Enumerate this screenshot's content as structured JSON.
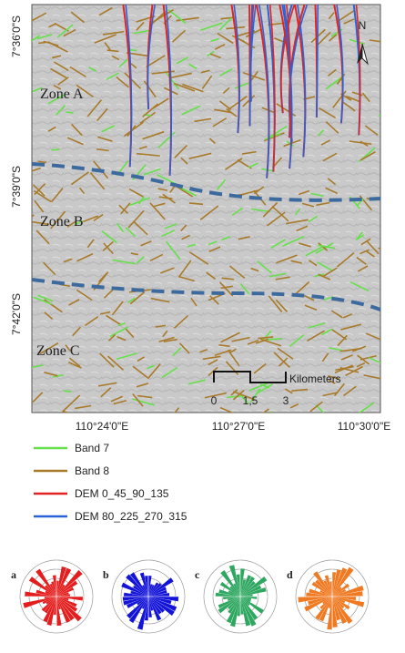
{
  "map": {
    "lat_labels": [
      "7°36'0\"S",
      "7°39'0\"S",
      "7°42'0\"S"
    ],
    "lon_labels": [
      "110°24'0\"E",
      "110°27'0\"E",
      "110°30'0\"E"
    ],
    "zones": [
      "Zone A",
      "Zone B",
      "Zone C"
    ],
    "north": "N",
    "scale": {
      "ticks": [
        "0",
        "1,5",
        "3"
      ],
      "unit": "Kilometers"
    },
    "boundary_color": "#3d6a9e"
  },
  "legend": [
    {
      "label": "Band 7",
      "color": "#66e04a"
    },
    {
      "label": "Band 8",
      "color": "#a87a2a"
    },
    {
      "label": "DEM 0_45_90_135",
      "color": "#e02424"
    },
    {
      "label": "DEM 80_225_270_315",
      "color": "#2a62d8"
    }
  ],
  "roses": [
    {
      "label": "a",
      "color": "#e41e1e"
    },
    {
      "label": "b",
      "color": "#1414d8"
    },
    {
      "label": "c",
      "color": "#2ea860"
    },
    {
      "label": "d",
      "color": "#f07a22"
    }
  ]
}
